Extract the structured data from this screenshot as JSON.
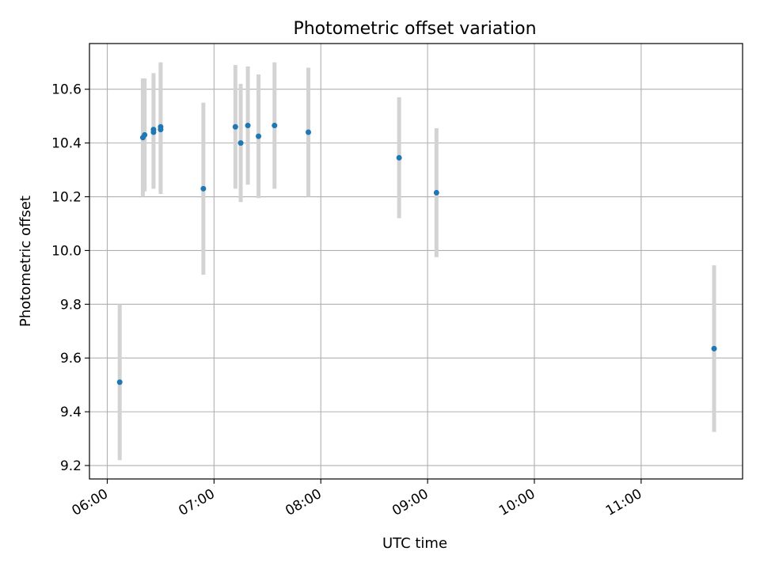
{
  "chart_data": {
    "type": "scatter",
    "title": "Photometric offset variation",
    "xlabel": "UTC time",
    "ylabel": "Photometric offset",
    "x_ticks": [
      "06:00",
      "07:00",
      "08:00",
      "09:00",
      "10:00",
      "11:00"
    ],
    "y_ticks": [
      "9.2",
      "9.4",
      "9.6",
      "9.8",
      "10.0",
      "10.2",
      "10.4",
      "10.6"
    ],
    "y_tick_values": [
      9.2,
      9.4,
      9.6,
      9.8,
      10.0,
      10.2,
      10.4,
      10.6
    ],
    "xlim": [
      "05:50",
      "11:57"
    ],
    "ylim": [
      9.15,
      10.77
    ],
    "grid": true,
    "colors": {
      "point": "#1f77b4",
      "errorbar": "#d3d3d3",
      "grid": "#b0b0b0"
    },
    "points": [
      {
        "x": "06:07",
        "y": 9.51,
        "yerr": 0.29
      },
      {
        "x": "06:20",
        "y": 10.42,
        "yerr": 0.22
      },
      {
        "x": "06:21",
        "y": 10.43,
        "yerr": 0.21
      },
      {
        "x": "06:26",
        "y": 10.45,
        "yerr": 0.21
      },
      {
        "x": "06:26",
        "y": 10.44,
        "yerr": 0.21
      },
      {
        "x": "06:30",
        "y": 10.46,
        "yerr": 0.24
      },
      {
        "x": "06:30",
        "y": 10.45,
        "yerr": 0.24
      },
      {
        "x": "06:54",
        "y": 10.23,
        "yerr": 0.32
      },
      {
        "x": "07:12",
        "y": 10.46,
        "yerr": 0.23
      },
      {
        "x": "07:15",
        "y": 10.4,
        "yerr": 0.22
      },
      {
        "x": "07:19",
        "y": 10.465,
        "yerr": 0.22
      },
      {
        "x": "07:25",
        "y": 10.425,
        "yerr": 0.23
      },
      {
        "x": "07:34",
        "y": 10.465,
        "yerr": 0.235
      },
      {
        "x": "07:53",
        "y": 10.44,
        "yerr": 0.24
      },
      {
        "x": "08:44",
        "y": 10.345,
        "yerr": 0.225
      },
      {
        "x": "09:05",
        "y": 10.215,
        "yerr": 0.24
      },
      {
        "x": "11:41",
        "y": 9.635,
        "yerr": 0.31
      }
    ]
  }
}
